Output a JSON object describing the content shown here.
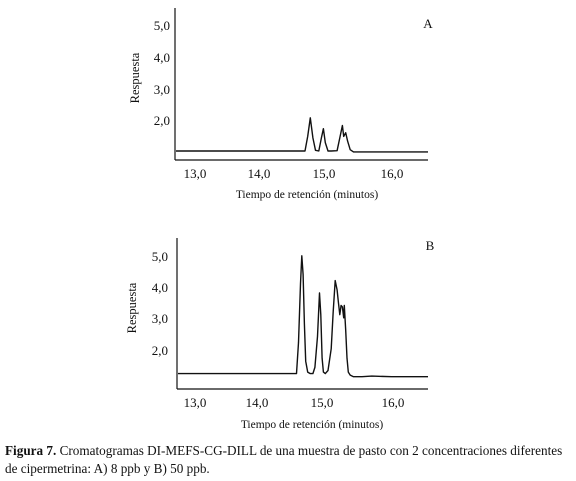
{
  "chart_data": [
    {
      "type": "line",
      "panel_label": "A",
      "xlabel": "Tiempo de retención (minutos)",
      "ylabel": "Respuesta",
      "x_ticks": [
        "13,0",
        "14,0",
        "15,0",
        "16,0"
      ],
      "y_ticks": [
        "2,0",
        "3,0",
        "4,0",
        "5,0"
      ],
      "xlim": [
        12.65,
        16.6
      ],
      "ylim": [
        1.0,
        5.6
      ],
      "series": [
        {
          "x": [
            12.65,
            14.68,
            14.72,
            14.76,
            14.8,
            14.84,
            14.89,
            14.93,
            14.96,
            14.99,
            15.03,
            15.08,
            15.17,
            15.21,
            15.25,
            15.27,
            15.3,
            15.33,
            15.37,
            15.42,
            15.6,
            16.0,
            16.6
          ],
          "y": [
            1.13,
            1.13,
            1.6,
            2.2,
            1.55,
            1.15,
            1.13,
            1.55,
            1.85,
            1.4,
            1.13,
            1.13,
            1.14,
            1.55,
            1.95,
            1.6,
            1.72,
            1.45,
            1.17,
            1.1,
            1.1,
            1.1,
            1.1
          ]
        }
      ]
    },
    {
      "type": "line",
      "panel_label": "B",
      "xlabel": "Tiempo de retención (minutos)",
      "ylabel": "Respuesta",
      "x_ticks": [
        "13,0",
        "14,0",
        "15,0",
        "16,0"
      ],
      "y_ticks": [
        "2,0",
        "3,0",
        "4,0",
        "5,0"
      ],
      "xlim": [
        12.65,
        16.6
      ],
      "ylim": [
        1.0,
        5.4
      ],
      "series": [
        {
          "x": [
            12.65,
            14.55,
            14.58,
            14.61,
            14.63,
            14.65,
            14.67,
            14.69,
            14.72,
            14.76,
            14.8,
            14.83,
            14.87,
            14.9,
            14.92,
            14.94,
            14.96,
            14.99,
            15.03,
            15.08,
            15.11,
            15.14,
            15.17,
            15.19,
            15.21,
            15.23,
            15.25,
            15.27,
            15.28,
            15.3,
            15.32,
            15.34,
            15.37,
            15.42,
            15.55,
            15.7,
            16.0,
            16.6
          ],
          "y": [
            1.4,
            1.4,
            2.4,
            4.3,
            5.2,
            4.6,
            3.0,
            1.8,
            1.45,
            1.4,
            1.4,
            1.6,
            2.6,
            4.0,
            3.3,
            1.9,
            1.45,
            1.4,
            1.5,
            2.2,
            3.4,
            4.4,
            4.1,
            3.7,
            3.3,
            3.6,
            3.55,
            3.2,
            3.6,
            2.8,
            1.9,
            1.45,
            1.35,
            1.3,
            1.3,
            1.32,
            1.3,
            1.3
          ]
        }
      ]
    }
  ],
  "caption": {
    "label": "Figura 7.",
    "text": "Cromatogramas DI-MEFS-CG-DILL de una muestra de pasto con 2 concentraciones diferentes de cipermetrina: A) 8 ppb y B) 50 ppb."
  }
}
